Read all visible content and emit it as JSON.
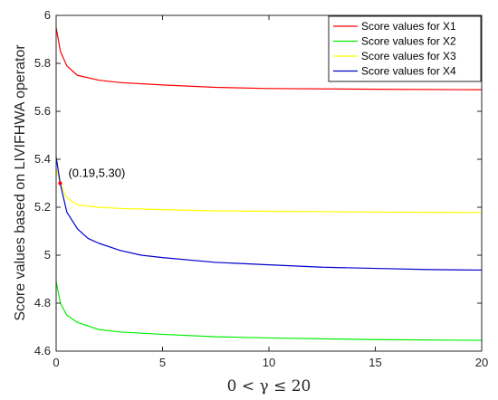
{
  "chart_data": {
    "type": "line",
    "xlabel": "0 < γ ≤ 20",
    "ylabel": "Score values based on LIVIFHWA operator",
    "xlim": [
      0,
      20
    ],
    "ylim": [
      4.6,
      6
    ],
    "xticks": [
      "0",
      "5",
      "10",
      "15",
      "20"
    ],
    "yticks": [
      "4.6",
      "4.8",
      "5",
      "5.2",
      "5.4",
      "5.6",
      "5.8",
      "6"
    ],
    "grid": false,
    "legend_position": "top-right",
    "series": [
      {
        "name": "Score values for X1",
        "color": "#ff0000",
        "x": [
          0,
          0.2,
          0.5,
          1,
          2,
          3,
          5,
          7.5,
          10,
          15,
          20
        ],
        "y": [
          5.95,
          5.85,
          5.79,
          5.75,
          5.73,
          5.72,
          5.71,
          5.7,
          5.695,
          5.692,
          5.69
        ]
      },
      {
        "name": "Score values for X2",
        "color": "#00ee00",
        "x": [
          0,
          0.2,
          0.5,
          1,
          2,
          3,
          5,
          7.5,
          10,
          15,
          20
        ],
        "y": [
          4.89,
          4.8,
          4.75,
          4.72,
          4.69,
          4.68,
          4.67,
          4.66,
          4.655,
          4.648,
          4.645
        ]
      },
      {
        "name": "Score values for X3",
        "color": "#ffff00",
        "x": [
          0,
          0.19,
          0.5,
          1,
          2,
          3,
          5,
          7.5,
          10,
          15,
          20
        ],
        "y": [
          5.36,
          5.3,
          5.24,
          5.21,
          5.2,
          5.195,
          5.19,
          5.185,
          5.183,
          5.18,
          5.178
        ]
      },
      {
        "name": "Score values for X4",
        "color": "#0000cc",
        "x": [
          0,
          0.19,
          0.5,
          1,
          1.5,
          2,
          3,
          4,
          5,
          7.5,
          10,
          12.5,
          15,
          17.5,
          20
        ],
        "y": [
          5.41,
          5.3,
          5.18,
          5.11,
          5.07,
          5.05,
          5.02,
          5.0,
          4.99,
          4.97,
          4.96,
          4.95,
          4.945,
          4.94,
          4.938
        ]
      }
    ],
    "annotations": [
      {
        "text": "(0.19,5.30)",
        "x": 0.19,
        "y": 5.3,
        "marker_color": "#ff0000"
      }
    ]
  }
}
